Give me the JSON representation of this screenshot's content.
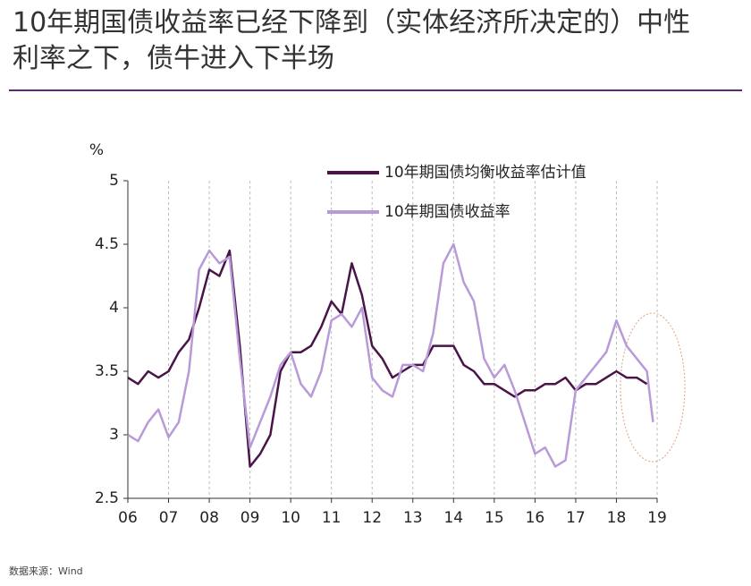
{
  "chart_data": {
    "type": "line",
    "title": "10年期国债收益率已经下降到（实体经济所决定的）中性利率之下，债牛进入下半场",
    "y_label": "%",
    "source": "数据来源：Wind",
    "xlim": [
      6,
      19
    ],
    "xticks": [
      {
        "value": 6,
        "label": "06"
      },
      {
        "value": 7,
        "label": "07"
      },
      {
        "value": 8,
        "label": "08"
      },
      {
        "value": 9,
        "label": "09"
      },
      10,
      11,
      12,
      13,
      14,
      15,
      16,
      17,
      18,
      19
    ],
    "ylim": [
      2.5,
      5
    ],
    "yticks": [
      2.5,
      3,
      3.5,
      4,
      4.5,
      5
    ],
    "xgrid": true,
    "legend": "top",
    "x": [
      6.0,
      6.25,
      6.5,
      6.75,
      7.0,
      7.25,
      7.5,
      7.75,
      8.0,
      8.25,
      8.5,
      8.75,
      9.0,
      9.25,
      9.5,
      9.75,
      10.0,
      10.25,
      10.5,
      10.75,
      11.0,
      11.25,
      11.5,
      11.75,
      12.0,
      12.25,
      12.5,
      12.75,
      13.0,
      13.25,
      13.5,
      13.75,
      14.0,
      14.25,
      14.5,
      14.75,
      15.0,
      15.25,
      15.5,
      15.75,
      16.0,
      16.25,
      16.5,
      16.75,
      17.0,
      17.25,
      17.5,
      17.75,
      18.0,
      18.25,
      18.5,
      18.75,
      18.9
    ],
    "series": [
      {
        "name": "10年期国债均衡收益率估计值",
        "color": "#4a1449",
        "values": [
          3.45,
          3.4,
          3.5,
          3.45,
          3.5,
          3.65,
          3.75,
          4.0,
          4.3,
          4.25,
          4.45,
          3.7,
          2.75,
          2.85,
          3.0,
          3.5,
          3.65,
          3.65,
          3.7,
          3.85,
          4.05,
          3.95,
          4.35,
          4.1,
          3.7,
          3.6,
          3.45,
          3.5,
          3.55,
          3.55,
          3.7,
          3.7,
          3.7,
          3.55,
          3.5,
          3.4,
          3.4,
          3.35,
          3.3,
          3.35,
          3.35,
          3.4,
          3.4,
          3.45,
          3.35,
          3.4,
          3.4,
          3.45,
          3.5,
          3.45,
          3.45,
          3.4,
          null
        ]
      },
      {
        "name": "10年期国债收益率",
        "color": "#b99ad9",
        "values": [
          3.0,
          2.95,
          3.1,
          3.2,
          2.98,
          3.1,
          3.5,
          4.3,
          4.45,
          4.35,
          4.4,
          3.6,
          2.9,
          3.1,
          3.3,
          3.55,
          3.65,
          3.4,
          3.3,
          3.5,
          3.9,
          3.95,
          3.85,
          4.0,
          3.45,
          3.35,
          3.3,
          3.55,
          3.55,
          3.5,
          3.8,
          4.35,
          4.5,
          4.2,
          4.05,
          3.6,
          3.45,
          3.55,
          3.35,
          3.1,
          2.85,
          2.9,
          2.75,
          2.8,
          3.35,
          3.45,
          3.55,
          3.65,
          3.9,
          3.7,
          3.6,
          3.5,
          3.1
        ]
      }
    ]
  }
}
